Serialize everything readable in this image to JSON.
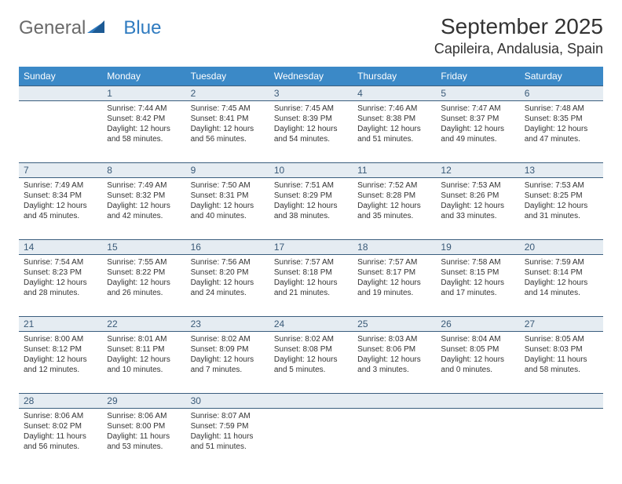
{
  "logo": {
    "word1": "General",
    "word2": "Blue"
  },
  "title": "September 2025",
  "location": "Capileira, Andalusia, Spain",
  "colors": {
    "header_bg": "#3b89c7",
    "header_text": "#ffffff",
    "daynum_bg": "#e5ecf2",
    "daynum_border": "#3b5e7e",
    "daynum_text": "#3a5a78",
    "body_text": "#333333",
    "logo_gray": "#6a6a6a",
    "logo_blue": "#2f7bc0"
  },
  "dayNames": [
    "Sunday",
    "Monday",
    "Tuesday",
    "Wednesday",
    "Thursday",
    "Friday",
    "Saturday"
  ],
  "weeks": [
    {
      "nums": [
        "",
        "1",
        "2",
        "3",
        "4",
        "5",
        "6"
      ],
      "cells": [
        null,
        {
          "sunrise": "7:44 AM",
          "sunset": "8:42 PM",
          "daylight": "12 hours and 58 minutes."
        },
        {
          "sunrise": "7:45 AM",
          "sunset": "8:41 PM",
          "daylight": "12 hours and 56 minutes."
        },
        {
          "sunrise": "7:45 AM",
          "sunset": "8:39 PM",
          "daylight": "12 hours and 54 minutes."
        },
        {
          "sunrise": "7:46 AM",
          "sunset": "8:38 PM",
          "daylight": "12 hours and 51 minutes."
        },
        {
          "sunrise": "7:47 AM",
          "sunset": "8:37 PM",
          "daylight": "12 hours and 49 minutes."
        },
        {
          "sunrise": "7:48 AM",
          "sunset": "8:35 PM",
          "daylight": "12 hours and 47 minutes."
        }
      ]
    },
    {
      "nums": [
        "7",
        "8",
        "9",
        "10",
        "11",
        "12",
        "13"
      ],
      "cells": [
        {
          "sunrise": "7:49 AM",
          "sunset": "8:34 PM",
          "daylight": "12 hours and 45 minutes."
        },
        {
          "sunrise": "7:49 AM",
          "sunset": "8:32 PM",
          "daylight": "12 hours and 42 minutes."
        },
        {
          "sunrise": "7:50 AM",
          "sunset": "8:31 PM",
          "daylight": "12 hours and 40 minutes."
        },
        {
          "sunrise": "7:51 AM",
          "sunset": "8:29 PM",
          "daylight": "12 hours and 38 minutes."
        },
        {
          "sunrise": "7:52 AM",
          "sunset": "8:28 PM",
          "daylight": "12 hours and 35 minutes."
        },
        {
          "sunrise": "7:53 AM",
          "sunset": "8:26 PM",
          "daylight": "12 hours and 33 minutes."
        },
        {
          "sunrise": "7:53 AM",
          "sunset": "8:25 PM",
          "daylight": "12 hours and 31 minutes."
        }
      ]
    },
    {
      "nums": [
        "14",
        "15",
        "16",
        "17",
        "18",
        "19",
        "20"
      ],
      "cells": [
        {
          "sunrise": "7:54 AM",
          "sunset": "8:23 PM",
          "daylight": "12 hours and 28 minutes."
        },
        {
          "sunrise": "7:55 AM",
          "sunset": "8:22 PM",
          "daylight": "12 hours and 26 minutes."
        },
        {
          "sunrise": "7:56 AM",
          "sunset": "8:20 PM",
          "daylight": "12 hours and 24 minutes."
        },
        {
          "sunrise": "7:57 AM",
          "sunset": "8:18 PM",
          "daylight": "12 hours and 21 minutes."
        },
        {
          "sunrise": "7:57 AM",
          "sunset": "8:17 PM",
          "daylight": "12 hours and 19 minutes."
        },
        {
          "sunrise": "7:58 AM",
          "sunset": "8:15 PM",
          "daylight": "12 hours and 17 minutes."
        },
        {
          "sunrise": "7:59 AM",
          "sunset": "8:14 PM",
          "daylight": "12 hours and 14 minutes."
        }
      ]
    },
    {
      "nums": [
        "21",
        "22",
        "23",
        "24",
        "25",
        "26",
        "27"
      ],
      "cells": [
        {
          "sunrise": "8:00 AM",
          "sunset": "8:12 PM",
          "daylight": "12 hours and 12 minutes."
        },
        {
          "sunrise": "8:01 AM",
          "sunset": "8:11 PM",
          "daylight": "12 hours and 10 minutes."
        },
        {
          "sunrise": "8:02 AM",
          "sunset": "8:09 PM",
          "daylight": "12 hours and 7 minutes."
        },
        {
          "sunrise": "8:02 AM",
          "sunset": "8:08 PM",
          "daylight": "12 hours and 5 minutes."
        },
        {
          "sunrise": "8:03 AM",
          "sunset": "8:06 PM",
          "daylight": "12 hours and 3 minutes."
        },
        {
          "sunrise": "8:04 AM",
          "sunset": "8:05 PM",
          "daylight": "12 hours and 0 minutes."
        },
        {
          "sunrise": "8:05 AM",
          "sunset": "8:03 PM",
          "daylight": "11 hours and 58 minutes."
        }
      ]
    },
    {
      "nums": [
        "28",
        "29",
        "30",
        "",
        "",
        "",
        ""
      ],
      "cells": [
        {
          "sunrise": "8:06 AM",
          "sunset": "8:02 PM",
          "daylight": "11 hours and 56 minutes."
        },
        {
          "sunrise": "8:06 AM",
          "sunset": "8:00 PM",
          "daylight": "11 hours and 53 minutes."
        },
        {
          "sunrise": "8:07 AM",
          "sunset": "7:59 PM",
          "daylight": "11 hours and 51 minutes."
        },
        null,
        null,
        null,
        null
      ]
    }
  ],
  "labels": {
    "sunrise": "Sunrise:",
    "sunset": "Sunset:",
    "daylight": "Daylight:"
  }
}
